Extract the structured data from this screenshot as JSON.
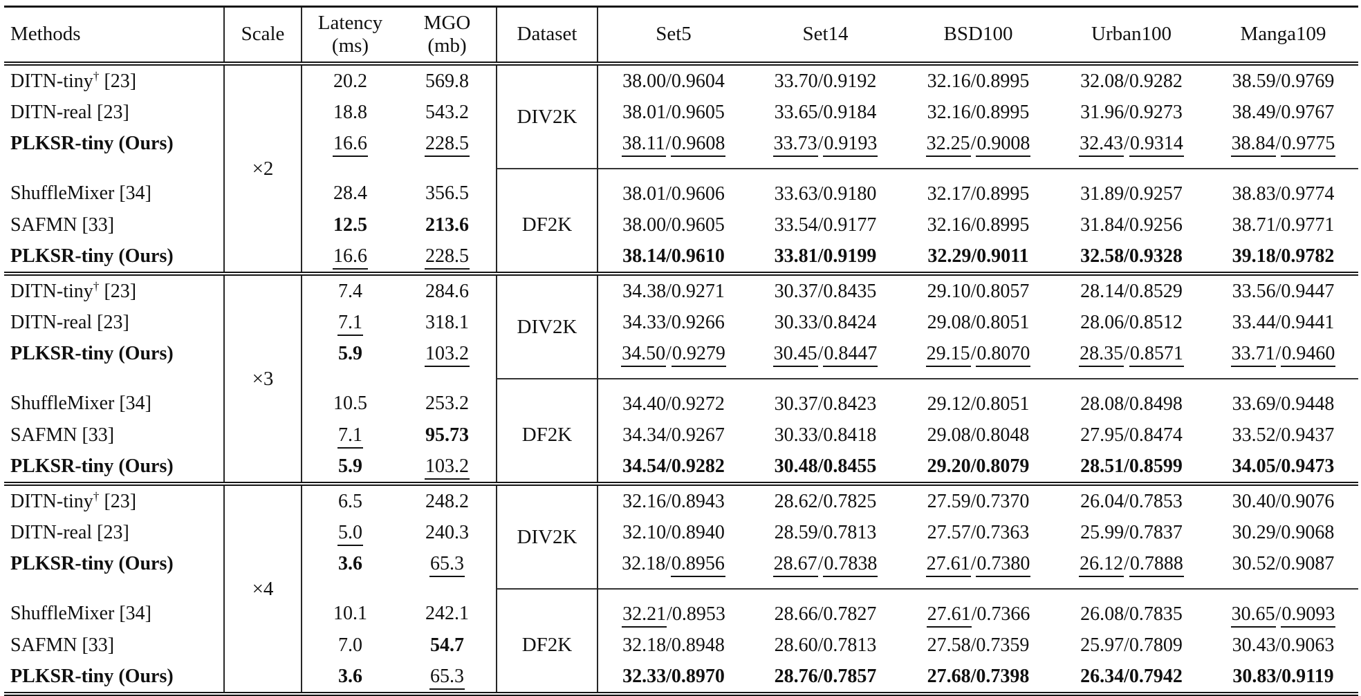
{
  "colors": {
    "background": "#ffffff",
    "text": "#101010",
    "rule": "#151515"
  },
  "table": {
    "headers": {
      "methods": "Methods",
      "scale": "Scale",
      "latency_line1": "Latency",
      "latency_line2": "(ms)",
      "mgo_line1": "MGO",
      "mgo_line2": "(mb)",
      "dataset": "Dataset",
      "benchmarks": [
        "Set5",
        "Set14",
        "BSD100",
        "Urban100",
        "Manga109"
      ]
    },
    "groups": [
      {
        "scale": "×2",
        "subgroups": [
          {
            "dataset": "DIV2K",
            "rows": [
              {
                "method": {
                  "name": "DITN-tiny",
                  "dagger": "†",
                  "ref": "[23]"
                },
                "latency": {
                  "v": "20.2"
                },
                "mgo": {
                  "v": "569.8"
                },
                "metrics": [
                  {
                    "p": "38.00",
                    "s": "0.9604"
                  },
                  {
                    "p": "33.70",
                    "s": "0.9192"
                  },
                  {
                    "p": "32.16",
                    "s": "0.8995"
                  },
                  {
                    "p": "32.08",
                    "s": "0.9282"
                  },
                  {
                    "p": "38.59",
                    "s": "0.9769"
                  }
                ]
              },
              {
                "method": {
                  "name": "DITN-real",
                  "ref": "[23]"
                },
                "latency": {
                  "v": "18.8"
                },
                "mgo": {
                  "v": "543.2"
                },
                "metrics": [
                  {
                    "p": "38.01",
                    "s": "0.9605"
                  },
                  {
                    "p": "33.65",
                    "s": "0.9184"
                  },
                  {
                    "p": "32.16",
                    "s": "0.8995"
                  },
                  {
                    "p": "31.96",
                    "s": "0.9273"
                  },
                  {
                    "p": "38.49",
                    "s": "0.9767"
                  }
                ]
              },
              {
                "method": {
                  "name": "PLKSR-tiny (Ours)",
                  "bold": true
                },
                "latency": {
                  "v": "16.6",
                  "u": true
                },
                "mgo": {
                  "v": "228.5",
                  "u": true
                },
                "metrics": [
                  {
                    "p": "38.11",
                    "pu": true,
                    "s": "0.9608",
                    "su": true
                  },
                  {
                    "p": "33.73",
                    "pu": true,
                    "s": "0.9193",
                    "su": true
                  },
                  {
                    "p": "32.25",
                    "pu": true,
                    "s": "0.9008",
                    "su": true
                  },
                  {
                    "p": "32.43",
                    "pu": true,
                    "s": "0.9314",
                    "su": true
                  },
                  {
                    "p": "38.84",
                    "pu": true,
                    "s": "0.9775",
                    "su": true
                  }
                ]
              }
            ]
          },
          {
            "dataset": "DF2K",
            "rows": [
              {
                "method": {
                  "name": "ShuffleMixer",
                  "ref": "[34]"
                },
                "latency": {
                  "v": "28.4"
                },
                "mgo": {
                  "v": "356.5"
                },
                "metrics": [
                  {
                    "p": "38.01",
                    "s": "0.9606"
                  },
                  {
                    "p": "33.63",
                    "s": "0.9180"
                  },
                  {
                    "p": "32.17",
                    "s": "0.8995"
                  },
                  {
                    "p": "31.89",
                    "s": "0.9257"
                  },
                  {
                    "p": "38.83",
                    "s": "0.9774"
                  }
                ]
              },
              {
                "method": {
                  "name": "SAFMN",
                  "ref": "[33]"
                },
                "latency": {
                  "v": "12.5",
                  "b": true
                },
                "mgo": {
                  "v": "213.6",
                  "b": true
                },
                "metrics": [
                  {
                    "p": "38.00",
                    "s": "0.9605"
                  },
                  {
                    "p": "33.54",
                    "s": "0.9177"
                  },
                  {
                    "p": "32.16",
                    "s": "0.8995"
                  },
                  {
                    "p": "31.84",
                    "s": "0.9256"
                  },
                  {
                    "p": "38.71",
                    "s": "0.9771"
                  }
                ]
              },
              {
                "method": {
                  "name": "PLKSR-tiny (Ours)",
                  "bold": true
                },
                "latency": {
                  "v": "16.6",
                  "u": true
                },
                "mgo": {
                  "v": "228.5",
                  "u": true
                },
                "metrics": [
                  {
                    "p": "38.14",
                    "s": "0.9610",
                    "b": true
                  },
                  {
                    "p": "33.81",
                    "s": "0.9199",
                    "b": true
                  },
                  {
                    "p": "32.29",
                    "s": "0.9011",
                    "b": true
                  },
                  {
                    "p": "32.58",
                    "s": "0.9328",
                    "b": true
                  },
                  {
                    "p": "39.18",
                    "s": "0.9782",
                    "b": true
                  }
                ]
              }
            ]
          }
        ]
      },
      {
        "scale": "×3",
        "subgroups": [
          {
            "dataset": "DIV2K",
            "rows": [
              {
                "method": {
                  "name": "DITN-tiny",
                  "dagger": "†",
                  "ref": "[23]"
                },
                "latency": {
                  "v": "7.4"
                },
                "mgo": {
                  "v": "284.6"
                },
                "metrics": [
                  {
                    "p": "34.38",
                    "s": "0.9271"
                  },
                  {
                    "p": "30.37",
                    "s": "0.8435"
                  },
                  {
                    "p": "29.10",
                    "s": "0.8057"
                  },
                  {
                    "p": "28.14",
                    "s": "0.8529"
                  },
                  {
                    "p": "33.56",
                    "s": "0.9447"
                  }
                ]
              },
              {
                "method": {
                  "name": "DITN-real",
                  "ref": "[23]"
                },
                "latency": {
                  "v": "7.1",
                  "u": true
                },
                "mgo": {
                  "v": "318.1"
                },
                "metrics": [
                  {
                    "p": "34.33",
                    "s": "0.9266"
                  },
                  {
                    "p": "30.33",
                    "s": "0.8424"
                  },
                  {
                    "p": "29.08",
                    "s": "0.8051"
                  },
                  {
                    "p": "28.06",
                    "s": "0.8512"
                  },
                  {
                    "p": "33.44",
                    "s": "0.9441"
                  }
                ]
              },
              {
                "method": {
                  "name": "PLKSR-tiny (Ours)",
                  "bold": true
                },
                "latency": {
                  "v": "5.9",
                  "b": true
                },
                "mgo": {
                  "v": "103.2",
                  "u": true
                },
                "metrics": [
                  {
                    "p": "34.50",
                    "pu": true,
                    "s": "0.9279",
                    "su": true
                  },
                  {
                    "p": "30.45",
                    "pu": true,
                    "s": "0.8447",
                    "su": true
                  },
                  {
                    "p": "29.15",
                    "pu": true,
                    "s": "0.8070",
                    "su": true
                  },
                  {
                    "p": "28.35",
                    "pu": true,
                    "s": "0.8571",
                    "su": true
                  },
                  {
                    "p": "33.71",
                    "pu": true,
                    "s": "0.9460",
                    "su": true
                  }
                ]
              }
            ]
          },
          {
            "dataset": "DF2K",
            "rows": [
              {
                "method": {
                  "name": "ShuffleMixer",
                  "ref": "[34]"
                },
                "latency": {
                  "v": "10.5"
                },
                "mgo": {
                  "v": "253.2"
                },
                "metrics": [
                  {
                    "p": "34.40",
                    "s": "0.9272"
                  },
                  {
                    "p": "30.37",
                    "s": "0.8423"
                  },
                  {
                    "p": "29.12",
                    "s": "0.8051"
                  },
                  {
                    "p": "28.08",
                    "s": "0.8498"
                  },
                  {
                    "p": "33.69",
                    "s": "0.9448"
                  }
                ]
              },
              {
                "method": {
                  "name": "SAFMN",
                  "ref": "[33]"
                },
                "latency": {
                  "v": "7.1",
                  "u": true
                },
                "mgo": {
                  "v": "95.73",
                  "b": true
                },
                "metrics": [
                  {
                    "p": "34.34",
                    "s": "0.9267"
                  },
                  {
                    "p": "30.33",
                    "s": "0.8418"
                  },
                  {
                    "p": "29.08",
                    "s": "0.8048"
                  },
                  {
                    "p": "27.95",
                    "s": "0.8474"
                  },
                  {
                    "p": "33.52",
                    "s": "0.9437"
                  }
                ]
              },
              {
                "method": {
                  "name": "PLKSR-tiny (Ours)",
                  "bold": true
                },
                "latency": {
                  "v": "5.9",
                  "b": true
                },
                "mgo": {
                  "v": "103.2",
                  "u": true
                },
                "metrics": [
                  {
                    "p": "34.54",
                    "s": "0.9282",
                    "b": true
                  },
                  {
                    "p": "30.48",
                    "s": "0.8455",
                    "b": true
                  },
                  {
                    "p": "29.20",
                    "s": "0.8079",
                    "b": true
                  },
                  {
                    "p": "28.51",
                    "s": "0.8599",
                    "b": true
                  },
                  {
                    "p": "34.05",
                    "s": "0.9473",
                    "b": true
                  }
                ]
              }
            ]
          }
        ]
      },
      {
        "scale": "×4",
        "subgroups": [
          {
            "dataset": "DIV2K",
            "rows": [
              {
                "method": {
                  "name": "DITN-tiny",
                  "dagger": "†",
                  "ref": "[23]"
                },
                "latency": {
                  "v": "6.5"
                },
                "mgo": {
                  "v": "248.2"
                },
                "metrics": [
                  {
                    "p": "32.16",
                    "s": "0.8943"
                  },
                  {
                    "p": "28.62",
                    "s": "0.7825"
                  },
                  {
                    "p": "27.59",
                    "s": "0.7370"
                  },
                  {
                    "p": "26.04",
                    "s": "0.7853"
                  },
                  {
                    "p": "30.40",
                    "s": "0.9076"
                  }
                ]
              },
              {
                "method": {
                  "name": "DITN-real",
                  "ref": "[23]"
                },
                "latency": {
                  "v": "5.0",
                  "u": true
                },
                "mgo": {
                  "v": "240.3"
                },
                "metrics": [
                  {
                    "p": "32.10",
                    "s": "0.8940"
                  },
                  {
                    "p": "28.59",
                    "s": "0.7813"
                  },
                  {
                    "p": "27.57",
                    "s": "0.7363"
                  },
                  {
                    "p": "25.99",
                    "s": "0.7837"
                  },
                  {
                    "p": "30.29",
                    "s": "0.9068"
                  }
                ]
              },
              {
                "method": {
                  "name": "PLKSR-tiny (Ours)",
                  "bold": true
                },
                "latency": {
                  "v": "3.6",
                  "b": true
                },
                "mgo": {
                  "v": "65.3",
                  "u": true
                },
                "metrics": [
                  {
                    "p": "32.18",
                    "s": "0.8956",
                    "su": true
                  },
                  {
                    "p": "28.67",
                    "pu": true,
                    "s": "0.7838",
                    "su": true
                  },
                  {
                    "p": "27.61",
                    "pu": true,
                    "s": "0.7380",
                    "su": true
                  },
                  {
                    "p": "26.12",
                    "pu": true,
                    "s": "0.7888",
                    "su": true
                  },
                  {
                    "p": "30.52",
                    "s": "0.9087"
                  }
                ]
              }
            ]
          },
          {
            "dataset": "DF2K",
            "rows": [
              {
                "method": {
                  "name": "ShuffleMixer",
                  "ref": "[34]"
                },
                "latency": {
                  "v": "10.1"
                },
                "mgo": {
                  "v": "242.1"
                },
                "metrics": [
                  {
                    "p": "32.21",
                    "pu": true,
                    "s": "0.8953"
                  },
                  {
                    "p": "28.66",
                    "s": "0.7827"
                  },
                  {
                    "p": "27.61",
                    "pu": true,
                    "s": "0.7366"
                  },
                  {
                    "p": "26.08",
                    "s": "0.7835"
                  },
                  {
                    "p": "30.65",
                    "pu": true,
                    "s": "0.9093",
                    "su": true
                  }
                ]
              },
              {
                "method": {
                  "name": "SAFMN",
                  "ref": "[33]"
                },
                "latency": {
                  "v": "7.0"
                },
                "mgo": {
                  "v": "54.7",
                  "b": true
                },
                "metrics": [
                  {
                    "p": "32.18",
                    "s": "0.8948"
                  },
                  {
                    "p": "28.60",
                    "s": "0.7813"
                  },
                  {
                    "p": "27.58",
                    "s": "0.7359"
                  },
                  {
                    "p": "25.97",
                    "s": "0.7809"
                  },
                  {
                    "p": "30.43",
                    "s": "0.9063"
                  }
                ]
              },
              {
                "method": {
                  "name": "PLKSR-tiny (Ours)",
                  "bold": true
                },
                "latency": {
                  "v": "3.6",
                  "b": true
                },
                "mgo": {
                  "v": "65.3",
                  "u": true
                },
                "metrics": [
                  {
                    "p": "32.33",
                    "s": "0.8970",
                    "b": true
                  },
                  {
                    "p": "28.76",
                    "s": "0.7857",
                    "b": true
                  },
                  {
                    "p": "27.68",
                    "s": "0.7398",
                    "b": true
                  },
                  {
                    "p": "26.34",
                    "s": "0.7942",
                    "b": true
                  },
                  {
                    "p": "30.83",
                    "s": "0.9119",
                    "b": true
                  }
                ]
              }
            ]
          }
        ]
      }
    ]
  }
}
